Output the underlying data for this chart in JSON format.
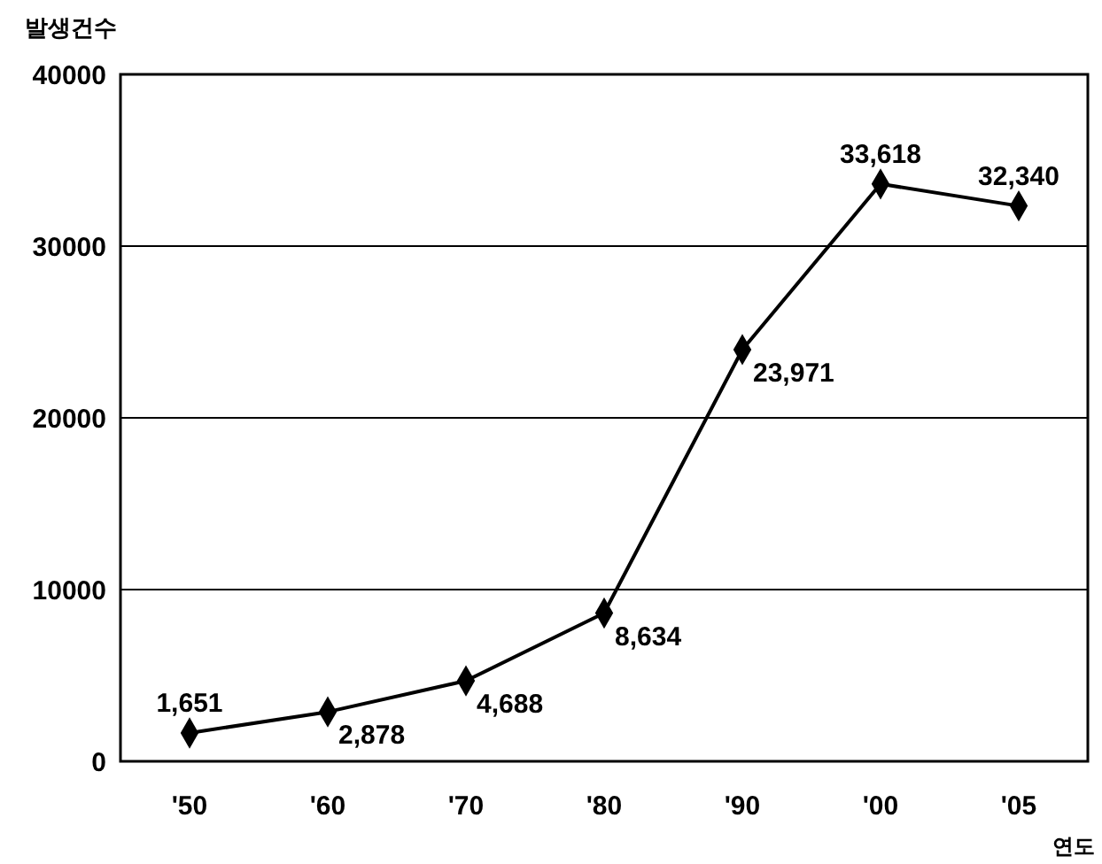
{
  "chart_data": {
    "type": "line",
    "ylabel": "발생건수",
    "xlabel": "연도",
    "categories": [
      "'50",
      "'60",
      "'70",
      "'80",
      "'90",
      "'00",
      "'05"
    ],
    "values": [
      1651,
      2878,
      4688,
      8634,
      23971,
      33618,
      32340
    ],
    "value_labels": [
      "1,651",
      "2,878",
      "4,688",
      "8,634",
      "23,971",
      "33,618",
      "32,340"
    ],
    "color": "#000000",
    "marker": "diamond",
    "line_style": "solid",
    "ylim": [
      0,
      40000
    ],
    "yticks": [
      0,
      10000,
      20000,
      30000,
      40000
    ],
    "grid": "y"
  }
}
